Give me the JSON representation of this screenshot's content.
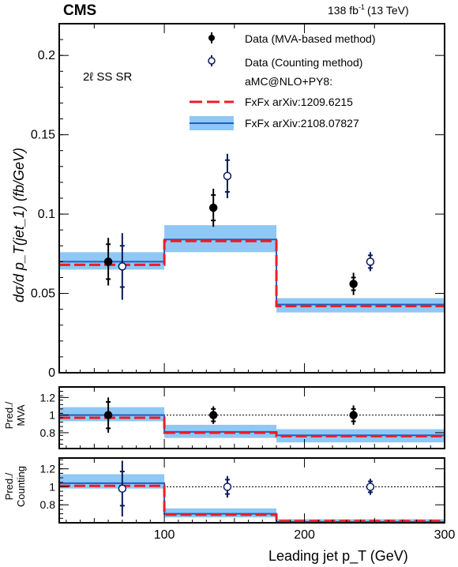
{
  "header": {
    "experiment": "CMS",
    "lumi_value": "138 fb",
    "lumi_exp": "-1",
    "lumi_energy": "(13 TeV)"
  },
  "region_label": "2ℓ SS SR",
  "legend": {
    "data_mva": "Data (MVA-based method)",
    "data_counting": "Data (Counting method)",
    "generator_heading": "aMC@NLO+PY8:",
    "fxfx_old": "FxFx arXiv:1209.6215",
    "fxfx_new": "FxFx arXiv:2108.07827"
  },
  "labels": {
    "top_ylabel": "dσ/d p_T(jet_1) (fb/GeV)",
    "ratio1_ylabel_line1": "Pred./",
    "ratio1_ylabel_line2": "MVA",
    "ratio2_ylabel_line1": "Pred./",
    "ratio2_ylabel_line2": "Counting",
    "xlabel": "Leading jet p_T (GeV)"
  },
  "colors": {
    "data_mva": "#000000",
    "data_counting": "#0a1a5c",
    "fxfx_old": "#ee1c25",
    "fxfx_new_line": "#1f5fbf",
    "fxfx_new_band": "#8fc8f5"
  },
  "chart_data": [
    {
      "panel": "main",
      "type": "line",
      "xlim": [
        25,
        300
      ],
      "ylim": [
        0,
        0.22
      ],
      "x_ticks": [
        100,
        200,
        300
      ],
      "y_ticks": [
        0,
        0.05,
        0.1,
        0.15,
        0.2
      ],
      "y_tick_labels": [
        "0",
        "0.05",
        "0.1",
        "0.15",
        "0.2"
      ],
      "bins": [
        [
          25,
          100
        ],
        [
          100,
          180
        ],
        [
          180,
          300
        ]
      ],
      "series": [
        {
          "name": "Data (MVA-based method)",
          "style": "points-filled",
          "x": [
            60,
            135,
            235
          ],
          "y": [
            0.07,
            0.104,
            0.056
          ],
          "err_stat": [
            0.011,
            0.008,
            0.004
          ],
          "err_tot": [
            0.015,
            0.012,
            0.007
          ]
        },
        {
          "name": "Data (Counting method)",
          "style": "points-open",
          "x": [
            70,
            145,
            247
          ],
          "y": [
            0.067,
            0.124,
            0.07
          ],
          "err_stat": [
            0.013,
            0.01,
            0.004
          ],
          "err_tot": [
            0.021,
            0.014,
            0.006
          ]
        },
        {
          "name": "FxFx arXiv:1209.6215",
          "style": "dashed-step",
          "values": [
            0.068,
            0.083,
            0.042
          ]
        },
        {
          "name": "FxFx arXiv:2108.07827",
          "style": "step-band",
          "values": [
            0.07,
            0.084,
            0.043
          ],
          "band_low": [
            0.065,
            0.076,
            0.038
          ],
          "band_high": [
            0.076,
            0.093,
            0.047
          ]
        }
      ]
    },
    {
      "panel": "ratio-mva",
      "type": "line",
      "xlim": [
        25,
        300
      ],
      "ylim": [
        0.62,
        1.32
      ],
      "y_ticks": [
        0.8,
        1,
        1.2
      ],
      "y_tick_labels": [
        "0.8",
        "1",
        "1.2"
      ],
      "reference_line": 1,
      "series": [
        {
          "name": "Data (MVA-based method)",
          "style": "points-filled",
          "x": [
            60,
            135,
            235
          ],
          "y": [
            1,
            1,
            1
          ],
          "err_stat": [
            0.15,
            0.07,
            0.07
          ],
          "err_tot": [
            0.2,
            0.1,
            0.11
          ]
        },
        {
          "name": "FxFx arXiv:1209.6215",
          "style": "dashed-step",
          "values": [
            0.97,
            0.8,
            0.76
          ]
        },
        {
          "name": "FxFx arXiv:2108.07827",
          "style": "step-band",
          "values": [
            1.0,
            0.81,
            0.77
          ],
          "band_low": [
            0.93,
            0.74,
            0.69
          ],
          "band_high": [
            1.09,
            0.89,
            0.84
          ]
        }
      ]
    },
    {
      "panel": "ratio-counting",
      "type": "line",
      "xlim": [
        25,
        300
      ],
      "ylim": [
        0.6,
        1.32
      ],
      "x_ticks": [
        100,
        200,
        300
      ],
      "x_tick_labels": [
        "100",
        "200",
        "300"
      ],
      "y_ticks": [
        0.8,
        1,
        1.2
      ],
      "y_tick_labels": [
        "0.8",
        "1",
        "1.2"
      ],
      "reference_line": 1,
      "series": [
        {
          "name": "Data (Counting method)",
          "style": "points-open",
          "x": [
            70,
            145,
            247
          ],
          "y": [
            0.98,
            1,
            1
          ],
          "err_stat": [
            0.19,
            0.08,
            0.06
          ],
          "err_tot": [
            0.31,
            0.12,
            0.09
          ]
        },
        {
          "name": "FxFx arXiv:1209.6215",
          "style": "dashed-step",
          "values": [
            1.01,
            0.69,
            0.62
          ]
        },
        {
          "name": "FxFx arXiv:2108.07827",
          "style": "step-band",
          "values": [
            1.04,
            0.7,
            0.61
          ],
          "band_low": [
            0.98,
            0.66,
            0.57
          ],
          "band_high": [
            1.14,
            0.76,
            0.64
          ]
        }
      ]
    }
  ]
}
